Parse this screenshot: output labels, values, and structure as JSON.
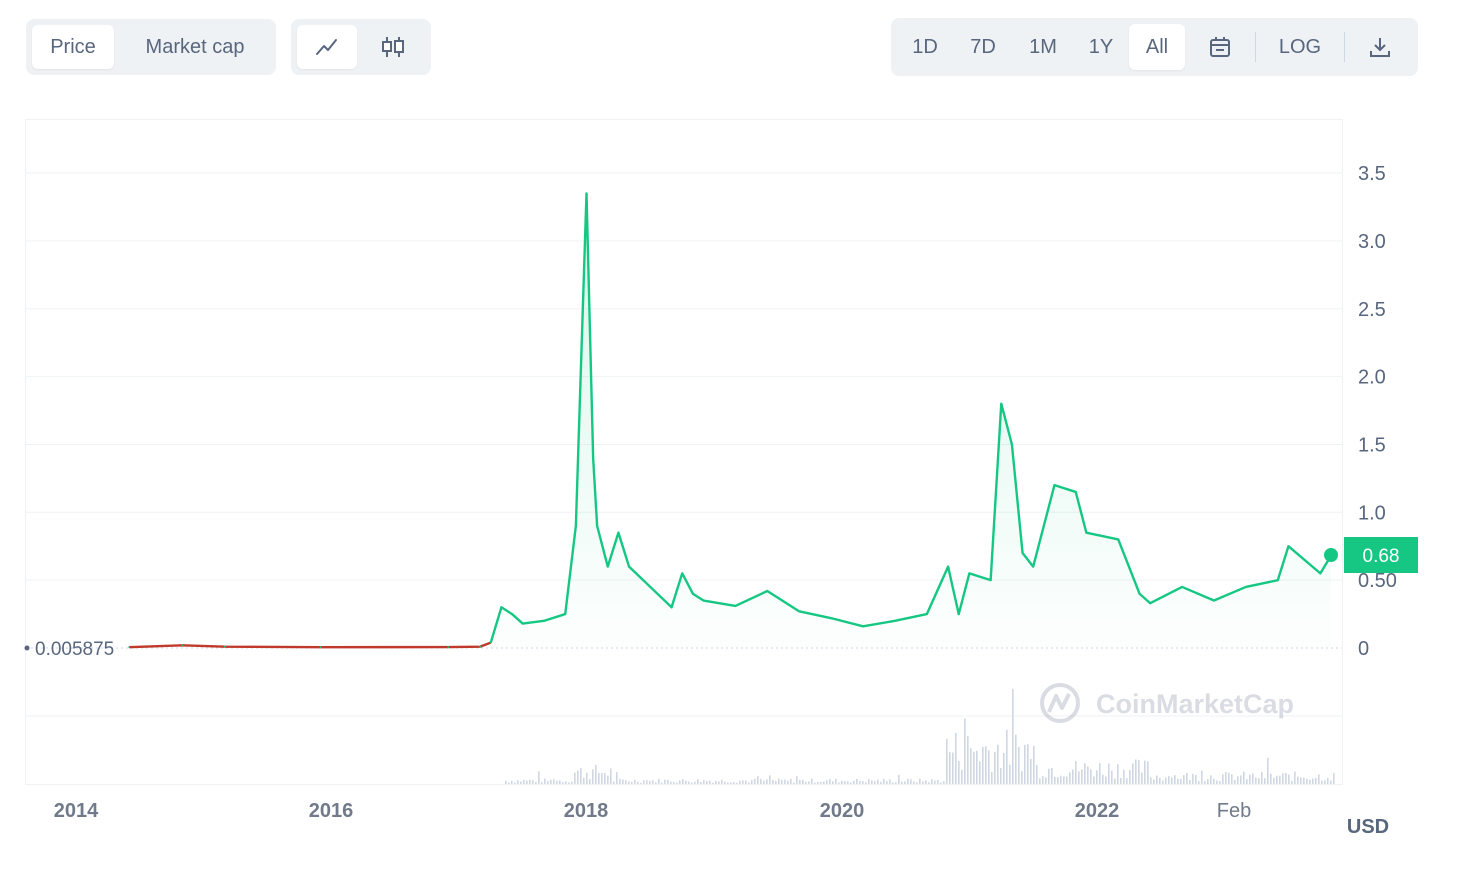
{
  "toolbar": {
    "mode_tabs": [
      {
        "label": "Price",
        "active": true
      },
      {
        "label": "Market cap",
        "active": false
      }
    ],
    "chart_type": [
      {
        "icon": "line-chart-icon",
        "active": true
      },
      {
        "icon": "candlestick-icon",
        "active": false
      }
    ],
    "ranges": [
      {
        "label": "1D",
        "active": false
      },
      {
        "label": "7D",
        "active": false
      },
      {
        "label": "1M",
        "active": false
      },
      {
        "label": "1Y",
        "active": false
      },
      {
        "label": "All",
        "active": true
      }
    ],
    "calendar_icon": "calendar-icon",
    "log_label": "LOG",
    "download_icon": "download-icon"
  },
  "watermark": "CoinMarketCap",
  "currency": "USD",
  "colors": {
    "line": "#16c784",
    "line_pre": "#c0392b",
    "grid": "#eff2f5",
    "volume": "#cfd6e4",
    "price_tag_bg": "#16c784"
  },
  "chart_data": {
    "type": "line",
    "title": "",
    "xlabel": "",
    "ylabel": "",
    "y_range": [
      0,
      3.5
    ],
    "y_ticks": [
      "3.5",
      "3.0",
      "2.5",
      "2.0",
      "1.5",
      "1.0",
      "0.50",
      "0"
    ],
    "x_ticks": [
      "2014",
      "2016",
      "2018",
      "2020",
      "2022",
      "Feb"
    ],
    "grid": true,
    "reference_value": "0.005875",
    "current_price": "0.68",
    "series": [
      {
        "points": [
          [
            "2014-06",
            0.006
          ],
          [
            "2014-11",
            0.02
          ],
          [
            "2015-03",
            0.01
          ],
          [
            "2015-12",
            0.006
          ],
          [
            "2016-12",
            0.007
          ],
          [
            "2017-03",
            0.01
          ],
          [
            "2017-04",
            0.04
          ],
          [
            "2017-05",
            0.3
          ],
          [
            "2017-06",
            0.25
          ],
          [
            "2017-07",
            0.18
          ],
          [
            "2017-09",
            0.2
          ],
          [
            "2017-11",
            0.25
          ],
          [
            "2017-12",
            0.9
          ],
          [
            "2018-01",
            3.35
          ],
          [
            "2018-01-20",
            1.4
          ],
          [
            "2018-02",
            0.9
          ],
          [
            "2018-03",
            0.6
          ],
          [
            "2018-04",
            0.85
          ],
          [
            "2018-05",
            0.6
          ],
          [
            "2018-07",
            0.45
          ],
          [
            "2018-09",
            0.3
          ],
          [
            "2018-10",
            0.55
          ],
          [
            "2018-11",
            0.4
          ],
          [
            "2018-12",
            0.35
          ],
          [
            "2019-03",
            0.31
          ],
          [
            "2019-06",
            0.42
          ],
          [
            "2019-09",
            0.27
          ],
          [
            "2019-12",
            0.22
          ],
          [
            "2020-03",
            0.16
          ],
          [
            "2020-06",
            0.2
          ],
          [
            "2020-09",
            0.25
          ],
          [
            "2020-11",
            0.6
          ],
          [
            "2020-12",
            0.25
          ],
          [
            "2021-01",
            0.55
          ],
          [
            "2021-03",
            0.5
          ],
          [
            "2021-04",
            1.8
          ],
          [
            "2021-05",
            1.5
          ],
          [
            "2021-06",
            0.7
          ],
          [
            "2021-07",
            0.6
          ],
          [
            "2021-09",
            1.2
          ],
          [
            "2021-11",
            1.15
          ],
          [
            "2021-12",
            0.85
          ],
          [
            "2022-03",
            0.8
          ],
          [
            "2022-05",
            0.4
          ],
          [
            "2022-06",
            0.33
          ],
          [
            "2022-09",
            0.45
          ],
          [
            "2022-12",
            0.35
          ],
          [
            "2023-03",
            0.45
          ],
          [
            "2023-06",
            0.5
          ],
          [
            "2023-07",
            0.75
          ],
          [
            "2023-10",
            0.55
          ],
          [
            "2023-11",
            0.68
          ]
        ]
      }
    ]
  }
}
